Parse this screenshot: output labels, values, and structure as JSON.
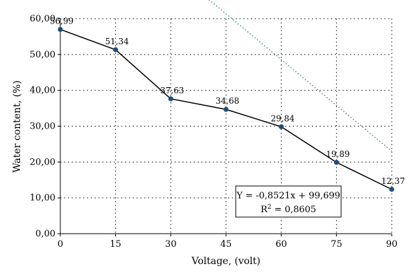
{
  "chart_data": {
    "type": "line",
    "xlabel": "Voltage, (volt)",
    "ylabel": "Water content, (%)",
    "x": [
      0,
      15,
      30,
      45,
      60,
      75,
      90
    ],
    "x_tick_labels": [
      "0",
      "15",
      "30",
      "45",
      "60",
      "75",
      "90"
    ],
    "y_tick_labels": [
      "0,00",
      "10,00",
      "20,00",
      "30,00",
      "40,00",
      "50,00",
      "60,00"
    ],
    "xlim": [
      0,
      90
    ],
    "ylim": [
      0,
      60
    ],
    "grid": "dotted",
    "series": [
      {
        "values": [
          56.99,
          51.34,
          37.63,
          34.68,
          29.84,
          19.89,
          12.37
        ],
        "labels": [
          "56,99",
          "51,34",
          "37,63",
          "34,68",
          "29,84",
          "19,89",
          "12,37"
        ],
        "color": "#1f4e79",
        "line_color": "#000000"
      }
    ],
    "trendline": {
      "slope": -0.8521,
      "intercept": 99.699,
      "style": "dotted",
      "color": "#2e7d6e"
    },
    "annotation": {
      "equation": "Y = -0,8521x + 99,699",
      "r2_prefix": "R",
      "r2_sup": "2",
      "r2_value": " = 0,8605"
    }
  }
}
